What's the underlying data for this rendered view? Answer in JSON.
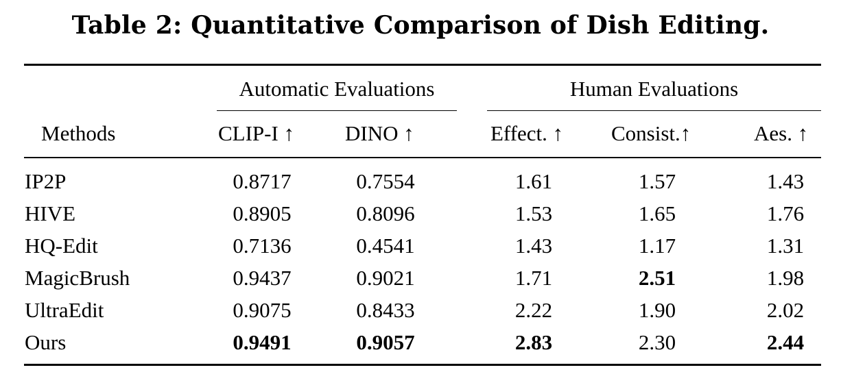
{
  "caption": "Table 2: Quantitative Comparison of Dish Editing.",
  "group_headers": {
    "automatic": "Automatic Evaluations",
    "human": "Human Evaluations"
  },
  "columns": {
    "methods": "Methods",
    "clip_i": "CLIP-I ↑",
    "dino": "DINO ↑",
    "effect": "Effect. ↑",
    "consist": "Consist.↑",
    "aes": "Aes. ↑"
  },
  "rows": [
    {
      "method": "IP2P",
      "clip_i": "0.8717",
      "dino": "0.7554",
      "effect": "1.61",
      "consist": "1.57",
      "aes": "1.43"
    },
    {
      "method": "HIVE",
      "clip_i": "0.8905",
      "dino": "0.8096",
      "effect": "1.53",
      "consist": "1.65",
      "aes": "1.76"
    },
    {
      "method": "HQ-Edit",
      "clip_i": "0.7136",
      "dino": "0.4541",
      "effect": "1.43",
      "consist": "1.17",
      "aes": "1.31"
    },
    {
      "method": "MagicBrush",
      "clip_i": "0.9437",
      "dino": "0.9021",
      "effect": "1.71",
      "consist": "2.51",
      "aes": "1.98"
    },
    {
      "method": "UltraEdit",
      "clip_i": "0.9075",
      "dino": "0.8433",
      "effect": "2.22",
      "consist": "1.90",
      "aes": "2.02"
    },
    {
      "method": "Ours",
      "clip_i": "0.9491",
      "dino": "0.9057",
      "effect": "2.83",
      "consist": "2.30",
      "aes": "2.44"
    }
  ],
  "bold_cells": [
    {
      "row": 3,
      "column": "consist"
    },
    {
      "row": 5,
      "column": "clip_i"
    },
    {
      "row": 5,
      "column": "dino"
    },
    {
      "row": 5,
      "column": "effect"
    },
    {
      "row": 5,
      "column": "aes"
    }
  ]
}
